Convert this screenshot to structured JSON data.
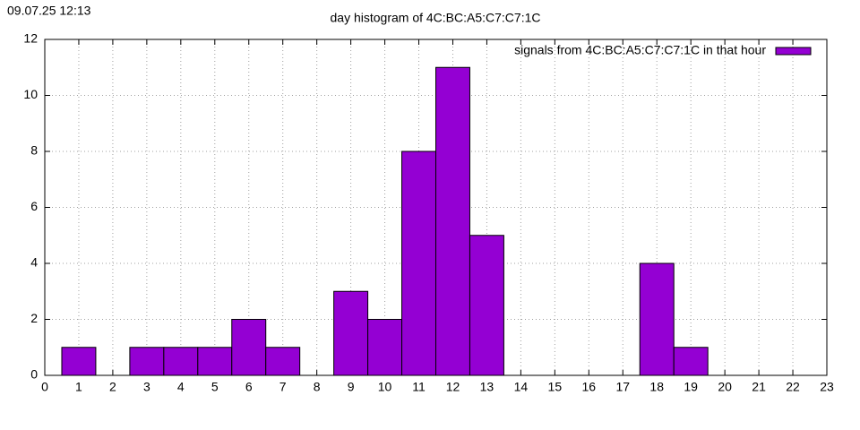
{
  "chart_data": {
    "type": "bar",
    "timestamp": "09.07.25 12:13",
    "title": "day histogram of 4C:BC:A5:C7:C7:1C",
    "x": [
      1,
      3,
      4,
      5,
      6,
      7,
      9,
      10,
      11,
      12,
      13,
      18,
      19
    ],
    "series": [
      {
        "name": "signals from 4C:BC:A5:C7:C7:1C in that hour",
        "color": "#9400d3",
        "values": [
          1,
          1,
          1,
          1,
          2,
          1,
          3,
          2,
          8,
          11,
          5,
          4,
          1
        ]
      }
    ],
    "xlim": [
      0,
      23
    ],
    "xticks": [
      0,
      1,
      2,
      3,
      4,
      5,
      6,
      7,
      8,
      9,
      10,
      11,
      12,
      13,
      14,
      15,
      16,
      17,
      18,
      19,
      20,
      21,
      22,
      23
    ],
    "ylim": [
      0,
      12
    ],
    "yticks": [
      0,
      2,
      4,
      6,
      8,
      10,
      12
    ],
    "grid": true,
    "legend": "top-right"
  }
}
